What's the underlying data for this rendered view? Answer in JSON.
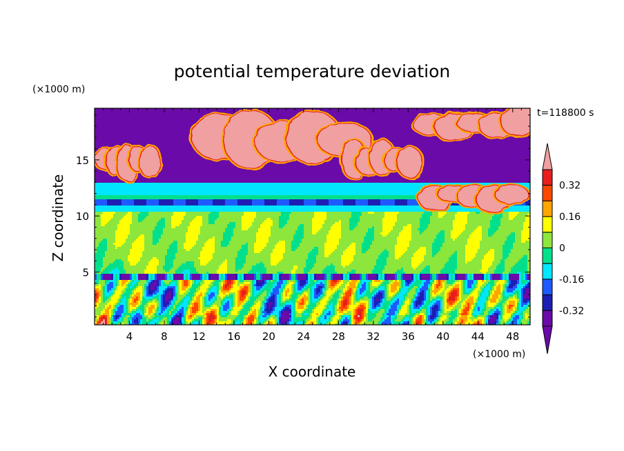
{
  "chart_data": {
    "type": "heatmap",
    "title": "potential temperature deviation",
    "xlabel": "X coordinate",
    "ylabel": "Z coordinate",
    "x_unit_label": "(×1000 m)",
    "y_unit_label": "(×1000 m)",
    "time_label": "t=118800 s",
    "xlim": [
      0,
      50
    ],
    "ylim": [
      0.3,
      19.6
    ],
    "x_ticks": [
      4,
      8,
      12,
      16,
      20,
      24,
      28,
      32,
      36,
      40,
      44,
      48
    ],
    "x_tick_labels": [
      "4",
      "8",
      "12",
      "16",
      "20",
      "24",
      "28",
      "32",
      "36",
      "40",
      "44",
      "48"
    ],
    "y_ticks": [
      5,
      10,
      15
    ],
    "y_tick_labels": [
      "5",
      "10",
      "15"
    ],
    "colorbar": {
      "levels": [
        -0.4,
        -0.32,
        -0.24,
        -0.16,
        -0.08,
        0,
        0.08,
        0.16,
        0.24,
        0.32,
        0.4
      ],
      "labeled_levels": [
        "0.32",
        "0.16",
        "0",
        "-0.16",
        "-0.32"
      ],
      "colors": [
        "#6a0aa8",
        "#1e1eb4",
        "#1e5aff",
        "#00e6ff",
        "#00e08c",
        "#8ce63c",
        "#ffff00",
        "#ffa500",
        "#ff4600",
        "#e61e1e",
        "#f0a0a0"
      ],
      "extend": "both"
    },
    "regions": [
      {
        "name": "upper-background",
        "x": [
          0,
          50
        ],
        "z": [
          13,
          19.6
        ],
        "value": -0.45
      },
      {
        "name": "tropopause-dark-band",
        "x": [
          0,
          50
        ],
        "z": [
          13.0,
          14.0
        ],
        "value": -0.36
      },
      {
        "name": "upper-warm-patch-1",
        "x": [
          0.5,
          7
        ],
        "z": [
          13.2,
          16.5
        ],
        "value": 0.45
      },
      {
        "name": "upper-warm-patch-2",
        "x": [
          12.5,
          30.5
        ],
        "z": [
          14.2,
          19.6
        ],
        "value": 0.45
      },
      {
        "name": "upper-warm-patch-3",
        "x": [
          29,
          37
        ],
        "z": [
          13.2,
          16.8
        ],
        "value": 0.45
      },
      {
        "name": "upper-warm-patch-4",
        "x": [
          37.5,
          50
        ],
        "z": [
          16.8,
          19.6
        ],
        "value": 0.45
      },
      {
        "name": "right-warm-patch",
        "x": [
          38,
          49
        ],
        "z": [
          10.5,
          13
        ],
        "value": 0.45
      },
      {
        "name": "cyan-band",
        "x": [
          0,
          50
        ],
        "z": [
          11.8,
          13.0
        ],
        "value": -0.12
      },
      {
        "name": "blue-band",
        "x": [
          0,
          50
        ],
        "z": [
          10.9,
          11.5
        ],
        "value": -0.24
      },
      {
        "name": "mid-layer",
        "x": [
          0,
          50
        ],
        "z": [
          5,
          10.8
        ],
        "value": 0.04
      },
      {
        "name": "boundary-layer",
        "x": [
          0,
          50
        ],
        "z": [
          0.3,
          4.6
        ],
        "value": 0.1
      }
    ]
  }
}
